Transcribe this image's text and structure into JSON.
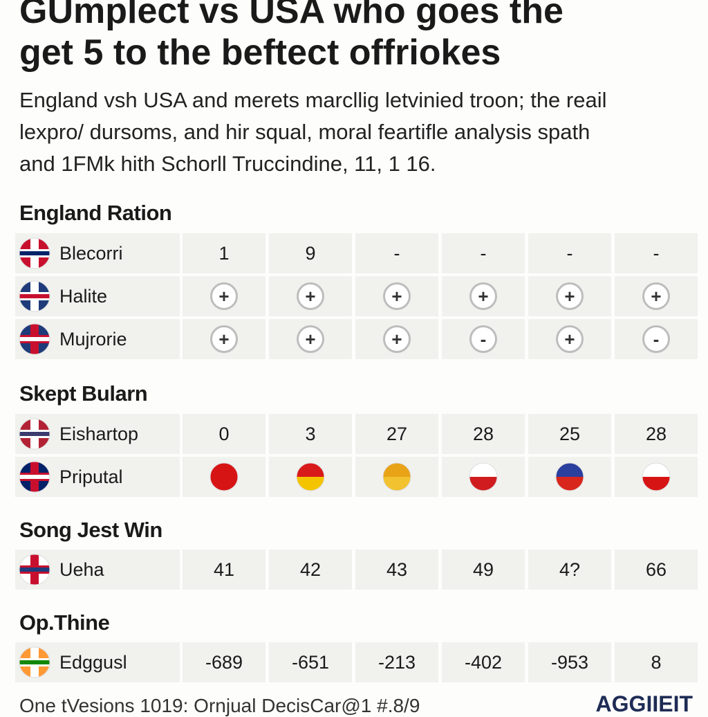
{
  "header": {
    "title": [
      "GUmplect vs USA who goes the",
      "get 5 to the beftect offriokes"
    ],
    "intro": [
      "England vsh USA and merets marcllig letvinied troon; the reail",
      "lexpro/ dursoms, and hir squal, moral feartifle analysis spath",
      "and 1FMk hith Schorll Truccindine, 11, 1 16."
    ]
  },
  "sections": [
    {
      "title": "England Ration",
      "rows": [
        {
          "label": "Blecorri",
          "cells": [
            "1",
            "9",
            "-",
            "-",
            "-",
            "-"
          ]
        },
        {
          "label": "Halite",
          "cells": [
            "+",
            "+",
            "+",
            "+",
            "+",
            "+"
          ]
        },
        {
          "label": "Mujrorie",
          "cells": [
            "+",
            "+",
            "+",
            "-",
            "+",
            "-"
          ]
        }
      ]
    },
    {
      "title": "Skept Bularn",
      "rows": [
        {
          "label": "Eishartop",
          "cells": [
            "0",
            "3",
            "27",
            "28",
            "25",
            "28"
          ]
        },
        {
          "label": "Priputal"
        }
      ]
    },
    {
      "title": "Song Jest Win",
      "rows": [
        {
          "label": "Ueha",
          "cells": [
            "41",
            "42",
            "43",
            "49",
            "4?",
            "66"
          ]
        }
      ]
    },
    {
      "title": "Op.Thine",
      "rows": [
        {
          "label": "Edggusl",
          "cells": [
            "-689",
            "-651",
            "-213",
            "-402",
            "-953",
            "8"
          ]
        }
      ]
    }
  ],
  "footer": {
    "note": "One tVesions 1019: Ornjual DecisCar@1 #.8/9",
    "brand": "AGGIIEIT"
  }
}
